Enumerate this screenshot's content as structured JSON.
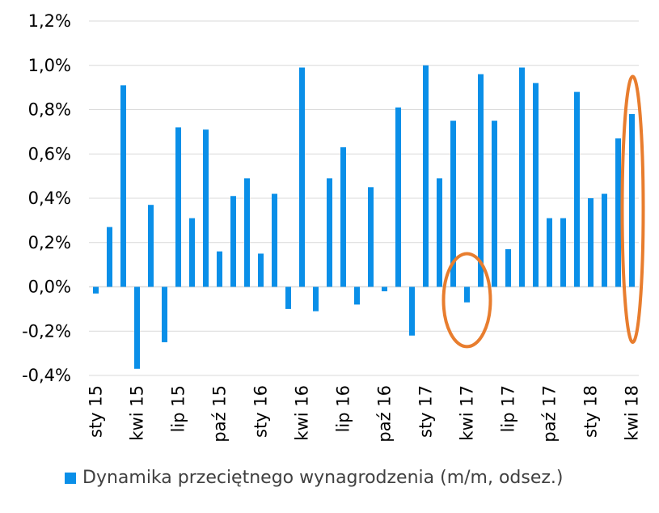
{
  "chart_data": {
    "type": "bar",
    "categories": [
      "sty 15",
      "lut 15",
      "mar 15",
      "kwi 15",
      "maj 15",
      "cze 15",
      "lip 15",
      "sie 15",
      "wrz 15",
      "paź 15",
      "lis 15",
      "gru 15",
      "sty 16",
      "lut 16",
      "mar 16",
      "kwi 16",
      "maj 16",
      "cze 16",
      "lip 16",
      "sie 16",
      "wrz 16",
      "paź 16",
      "lis 16",
      "gru 16",
      "sty 17",
      "lut 17",
      "mar 17",
      "kwi 17",
      "maj 17",
      "cze 17",
      "lip 17",
      "sie 17",
      "wrz 17",
      "paź 17",
      "lis 17",
      "gru 17",
      "sty 18",
      "lut 18",
      "mar 18",
      "kwi 18"
    ],
    "x_tick_labels": [
      "sty 15",
      "kwi 15",
      "lip 15",
      "paź 15",
      "sty 16",
      "kwi 16",
      "lip 16",
      "paź 16",
      "sty 17",
      "kwi 17",
      "lip 17",
      "paź 17",
      "sty 18",
      "kwi 18"
    ],
    "series": [
      {
        "name": "Dynamika przeciętnego wynagrodzenia (m/m, odsez.)",
        "color": "#0a8fe8",
        "values": [
          -0.03,
          0.27,
          0.91,
          -0.37,
          0.37,
          -0.25,
          0.72,
          0.31,
          0.71,
          0.16,
          0.41,
          0.49,
          0.15,
          0.42,
          -0.1,
          0.99,
          -0.11,
          0.49,
          0.63,
          -0.08,
          0.45,
          -0.02,
          0.81,
          -0.22,
          1.0,
          0.49,
          0.75,
          -0.07,
          0.96,
          0.75,
          0.17,
          0.99,
          0.92,
          0.31,
          0.31,
          0.88,
          0.4,
          0.42,
          0.67,
          0.78
        ]
      }
    ],
    "y_tick_labels": [
      "1,2%",
      "1,0%",
      "0,8%",
      "0,6%",
      "0,4%",
      "0,2%",
      "0,0%",
      "-0,2%",
      "-0,4%"
    ],
    "y_tick_values": [
      1.2,
      1.0,
      0.8,
      0.6,
      0.4,
      0.2,
      0.0,
      -0.2,
      -0.4
    ],
    "ylim": [
      -0.4,
      1.2
    ],
    "grid": true,
    "legend_position": "bottom",
    "annotations": [
      {
        "shape": "ellipse",
        "color": "#e87d2e",
        "around_category": "kwi 17",
        "y_range": [
          -0.27,
          0.15
        ]
      },
      {
        "shape": "ellipse",
        "color": "#e87d2e",
        "around_category": "kwi 18",
        "y_range": [
          -0.25,
          0.95
        ]
      }
    ],
    "title": "",
    "xlabel": "",
    "ylabel": ""
  }
}
